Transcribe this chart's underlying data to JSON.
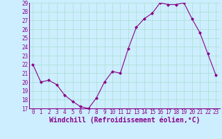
{
  "x": [
    0,
    1,
    2,
    3,
    4,
    5,
    6,
    7,
    8,
    9,
    10,
    11,
    12,
    13,
    14,
    15,
    16,
    17,
    18,
    19,
    20,
    21,
    22,
    23
  ],
  "y": [
    22,
    20,
    20.2,
    19.7,
    18.5,
    17.8,
    17.2,
    17.0,
    18.2,
    20.0,
    21.2,
    21.0,
    23.8,
    26.2,
    27.2,
    27.8,
    29.0,
    28.8,
    28.8,
    29.0,
    27.2,
    25.6,
    23.2,
    20.8
  ],
  "ylim": [
    17,
    29
  ],
  "yticks": [
    17,
    18,
    19,
    20,
    21,
    22,
    23,
    24,
    25,
    26,
    27,
    28,
    29
  ],
  "xlim": [
    -0.5,
    23.5
  ],
  "xticks": [
    0,
    1,
    2,
    3,
    4,
    5,
    6,
    7,
    8,
    9,
    10,
    11,
    12,
    13,
    14,
    15,
    16,
    17,
    18,
    19,
    20,
    21,
    22,
    23
  ],
  "xlabel": "Windchill (Refroidissement éolien,°C)",
  "line_color": "#880088",
  "marker": "D",
  "marker_size": 2,
  "background_color": "#cceeff",
  "grid_color": "#aaddcc",
  "tick_color": "#880088",
  "label_color": "#880088",
  "tick_fontsize": 5.5,
  "xlabel_fontsize": 7
}
